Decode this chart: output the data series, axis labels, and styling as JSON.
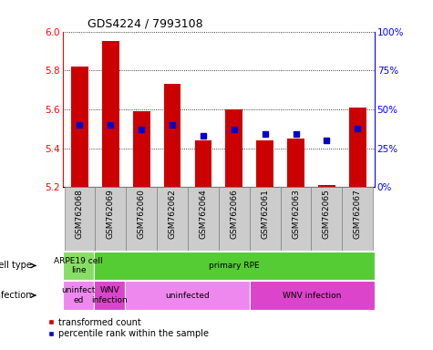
{
  "title": "GDS4224 / 7993108",
  "samples": [
    "GSM762068",
    "GSM762069",
    "GSM762060",
    "GSM762062",
    "GSM762064",
    "GSM762066",
    "GSM762061",
    "GSM762063",
    "GSM762065",
    "GSM762067"
  ],
  "transformed_count": [
    5.82,
    5.95,
    5.59,
    5.73,
    5.44,
    5.6,
    5.44,
    5.45,
    5.21,
    5.61
  ],
  "percentile_rank": [
    40,
    40,
    37,
    40,
    33,
    37,
    34,
    34,
    30,
    38
  ],
  "ylim": [
    5.2,
    6.0
  ],
  "yticks": [
    5.2,
    5.4,
    5.6,
    5.8,
    6.0
  ],
  "y2ticks": [
    0,
    25,
    50,
    75,
    100
  ],
  "bar_color": "#cc0000",
  "dot_color": "#0000cc",
  "bg_color": "#cccccc",
  "cell_type_green_light": "#88dd66",
  "cell_type_green_dark": "#55cc33",
  "infection_pink_light": "#ee88ee",
  "infection_pink_dark": "#dd44cc",
  "legend_items": [
    "transformed count",
    "percentile rank within the sample"
  ]
}
